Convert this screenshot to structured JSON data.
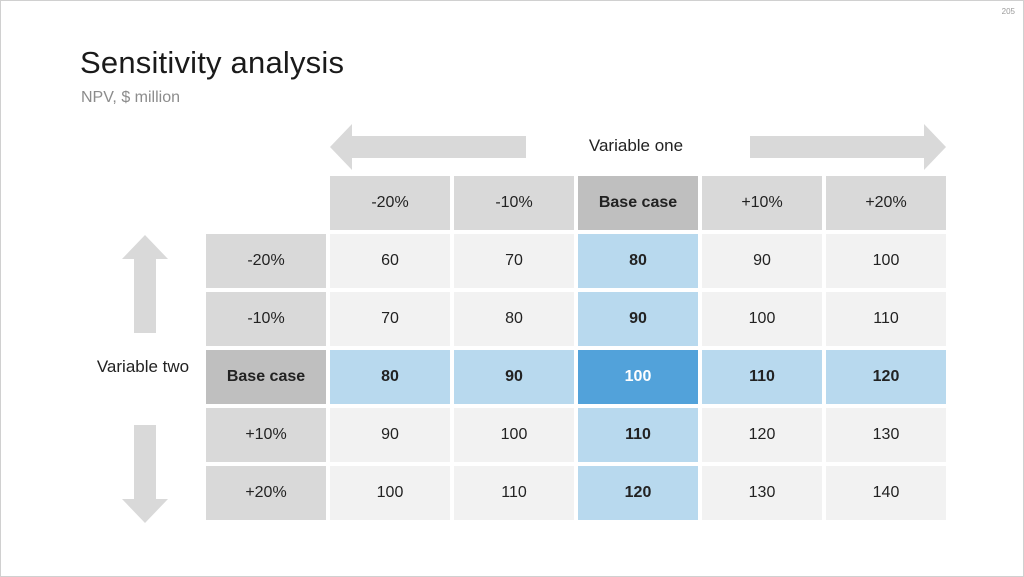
{
  "page_number": "205",
  "title": "Sensitivity analysis",
  "subtitle": "NPV, $ million",
  "variable_one_label": "Variable one",
  "variable_two_label": "Variable two",
  "column_headers": [
    "-20%",
    "-10%",
    "Base case",
    "+10%",
    "+20%"
  ],
  "row_headers": [
    "-20%",
    "-10%",
    "Base case",
    "+10%",
    "+20%"
  ],
  "values": [
    [
      "60",
      "70",
      "80",
      "90",
      "100"
    ],
    [
      "70",
      "80",
      "90",
      "100",
      "110"
    ],
    [
      "80",
      "90",
      "100",
      "110",
      "120"
    ],
    [
      "90",
      "100",
      "110",
      "120",
      "130"
    ],
    [
      "100",
      "110",
      "120",
      "130",
      "140"
    ]
  ],
  "colors": {
    "header": "#d9d9d9",
    "header_base": "#bfbfbf",
    "cell": "#f2f2f2",
    "base_highlight": "#b8d9ee",
    "center_highlight": "#52a2da",
    "arrow": "#d9d9d9"
  }
}
